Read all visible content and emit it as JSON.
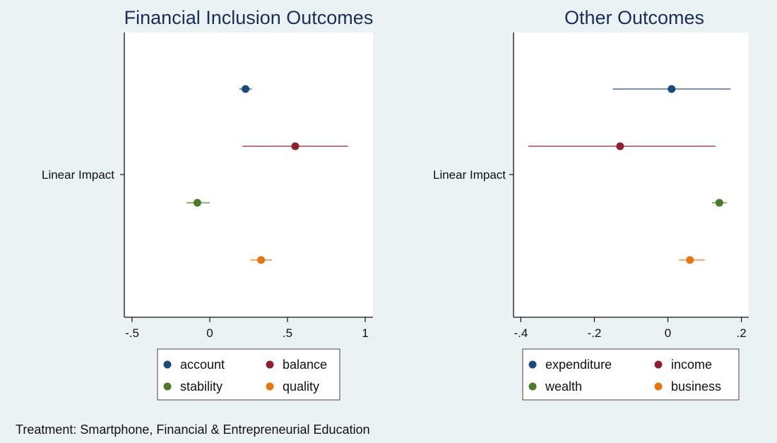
{
  "footnote": "Treatment: Smartphone, Financial & Entrepreneurial Education",
  "chart_data": [
    {
      "type": "scatter",
      "subtype": "coefficient-plot",
      "title": "Financial Inclusion Outcomes",
      "ytick_label": "Linear Impact",
      "xlim": [
        -0.55,
        1.05
      ],
      "xticks": [
        {
          "value": -0.5,
          "label": "-.5"
        },
        {
          "value": 0,
          "label": "0"
        },
        {
          "value": 0.5,
          "label": ".5"
        },
        {
          "value": 1,
          "label": "1"
        }
      ],
      "series": [
        {
          "name": "account",
          "color": "#1a4a7a",
          "estimate": 0.23,
          "ci": [
            0.19,
            0.27
          ]
        },
        {
          "name": "balance",
          "color": "#8f1f2c",
          "estimate": 0.55,
          "ci": [
            0.21,
            0.89
          ]
        },
        {
          "name": "stability",
          "color": "#4e7a2d",
          "estimate": -0.08,
          "ci": [
            -0.15,
            0.0
          ]
        },
        {
          "name": "quality",
          "color": "#e8760f",
          "estimate": 0.33,
          "ci": [
            0.26,
            0.4
          ]
        }
      ],
      "legend_position": "bottom"
    },
    {
      "type": "scatter",
      "subtype": "coefficient-plot",
      "title": "Other Outcomes",
      "ytick_label": "Linear Impact",
      "xlim": [
        -0.42,
        0.22
      ],
      "xticks": [
        {
          "value": -0.4,
          "label": "-.4"
        },
        {
          "value": -0.2,
          "label": "-.2"
        },
        {
          "value": 0,
          "label": "0"
        },
        {
          "value": 0.2,
          "label": ".2"
        }
      ],
      "series": [
        {
          "name": "expenditure",
          "color": "#1a4a7a",
          "estimate": 0.01,
          "ci": [
            -0.15,
            0.17
          ]
        },
        {
          "name": "income",
          "color": "#8f1f2c",
          "estimate": -0.13,
          "ci": [
            -0.38,
            0.13
          ]
        },
        {
          "name": "wealth",
          "color": "#4e7a2d",
          "estimate": 0.14,
          "ci": [
            0.12,
            0.16
          ]
        },
        {
          "name": "business",
          "color": "#e8760f",
          "estimate": 0.06,
          "ci": [
            0.03,
            0.1
          ]
        }
      ],
      "legend_position": "bottom"
    }
  ]
}
